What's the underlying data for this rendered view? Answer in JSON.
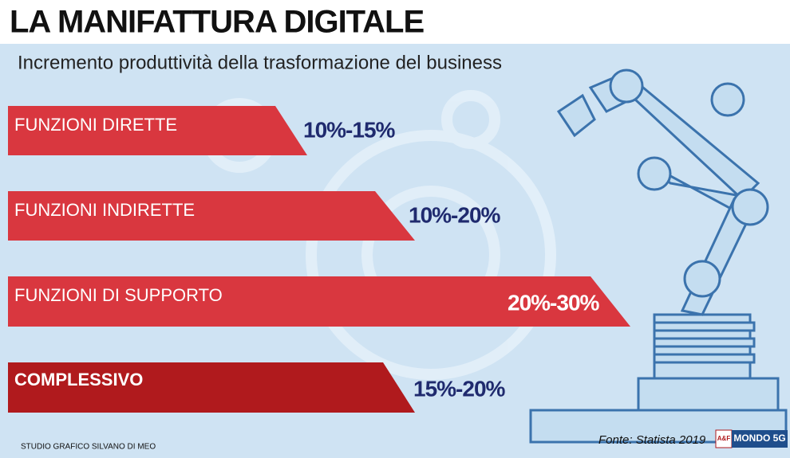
{
  "header": {
    "title": "LA MANIFATTURA DIGITALE",
    "subtitle": "Incremento produttività della trasformazione del business"
  },
  "rows": [
    {
      "label": "FUNZIONI DIRETTE",
      "range": "10%-15%"
    },
    {
      "label": "FUNZIONI INDIRETTE",
      "range": "10%-20%"
    },
    {
      "label": "FUNZIONI DI SUPPORTO",
      "range": "20%-30%"
    },
    {
      "label": "COMPLESSIVO",
      "range": "15%-20%"
    }
  ],
  "footer": {
    "credit": "STUDIO GRAFICO SILVANO DI MEO",
    "source": "Fonte: Statista 2019",
    "logo_mark": "A&F",
    "logo_text": "MONDO 5G"
  }
}
